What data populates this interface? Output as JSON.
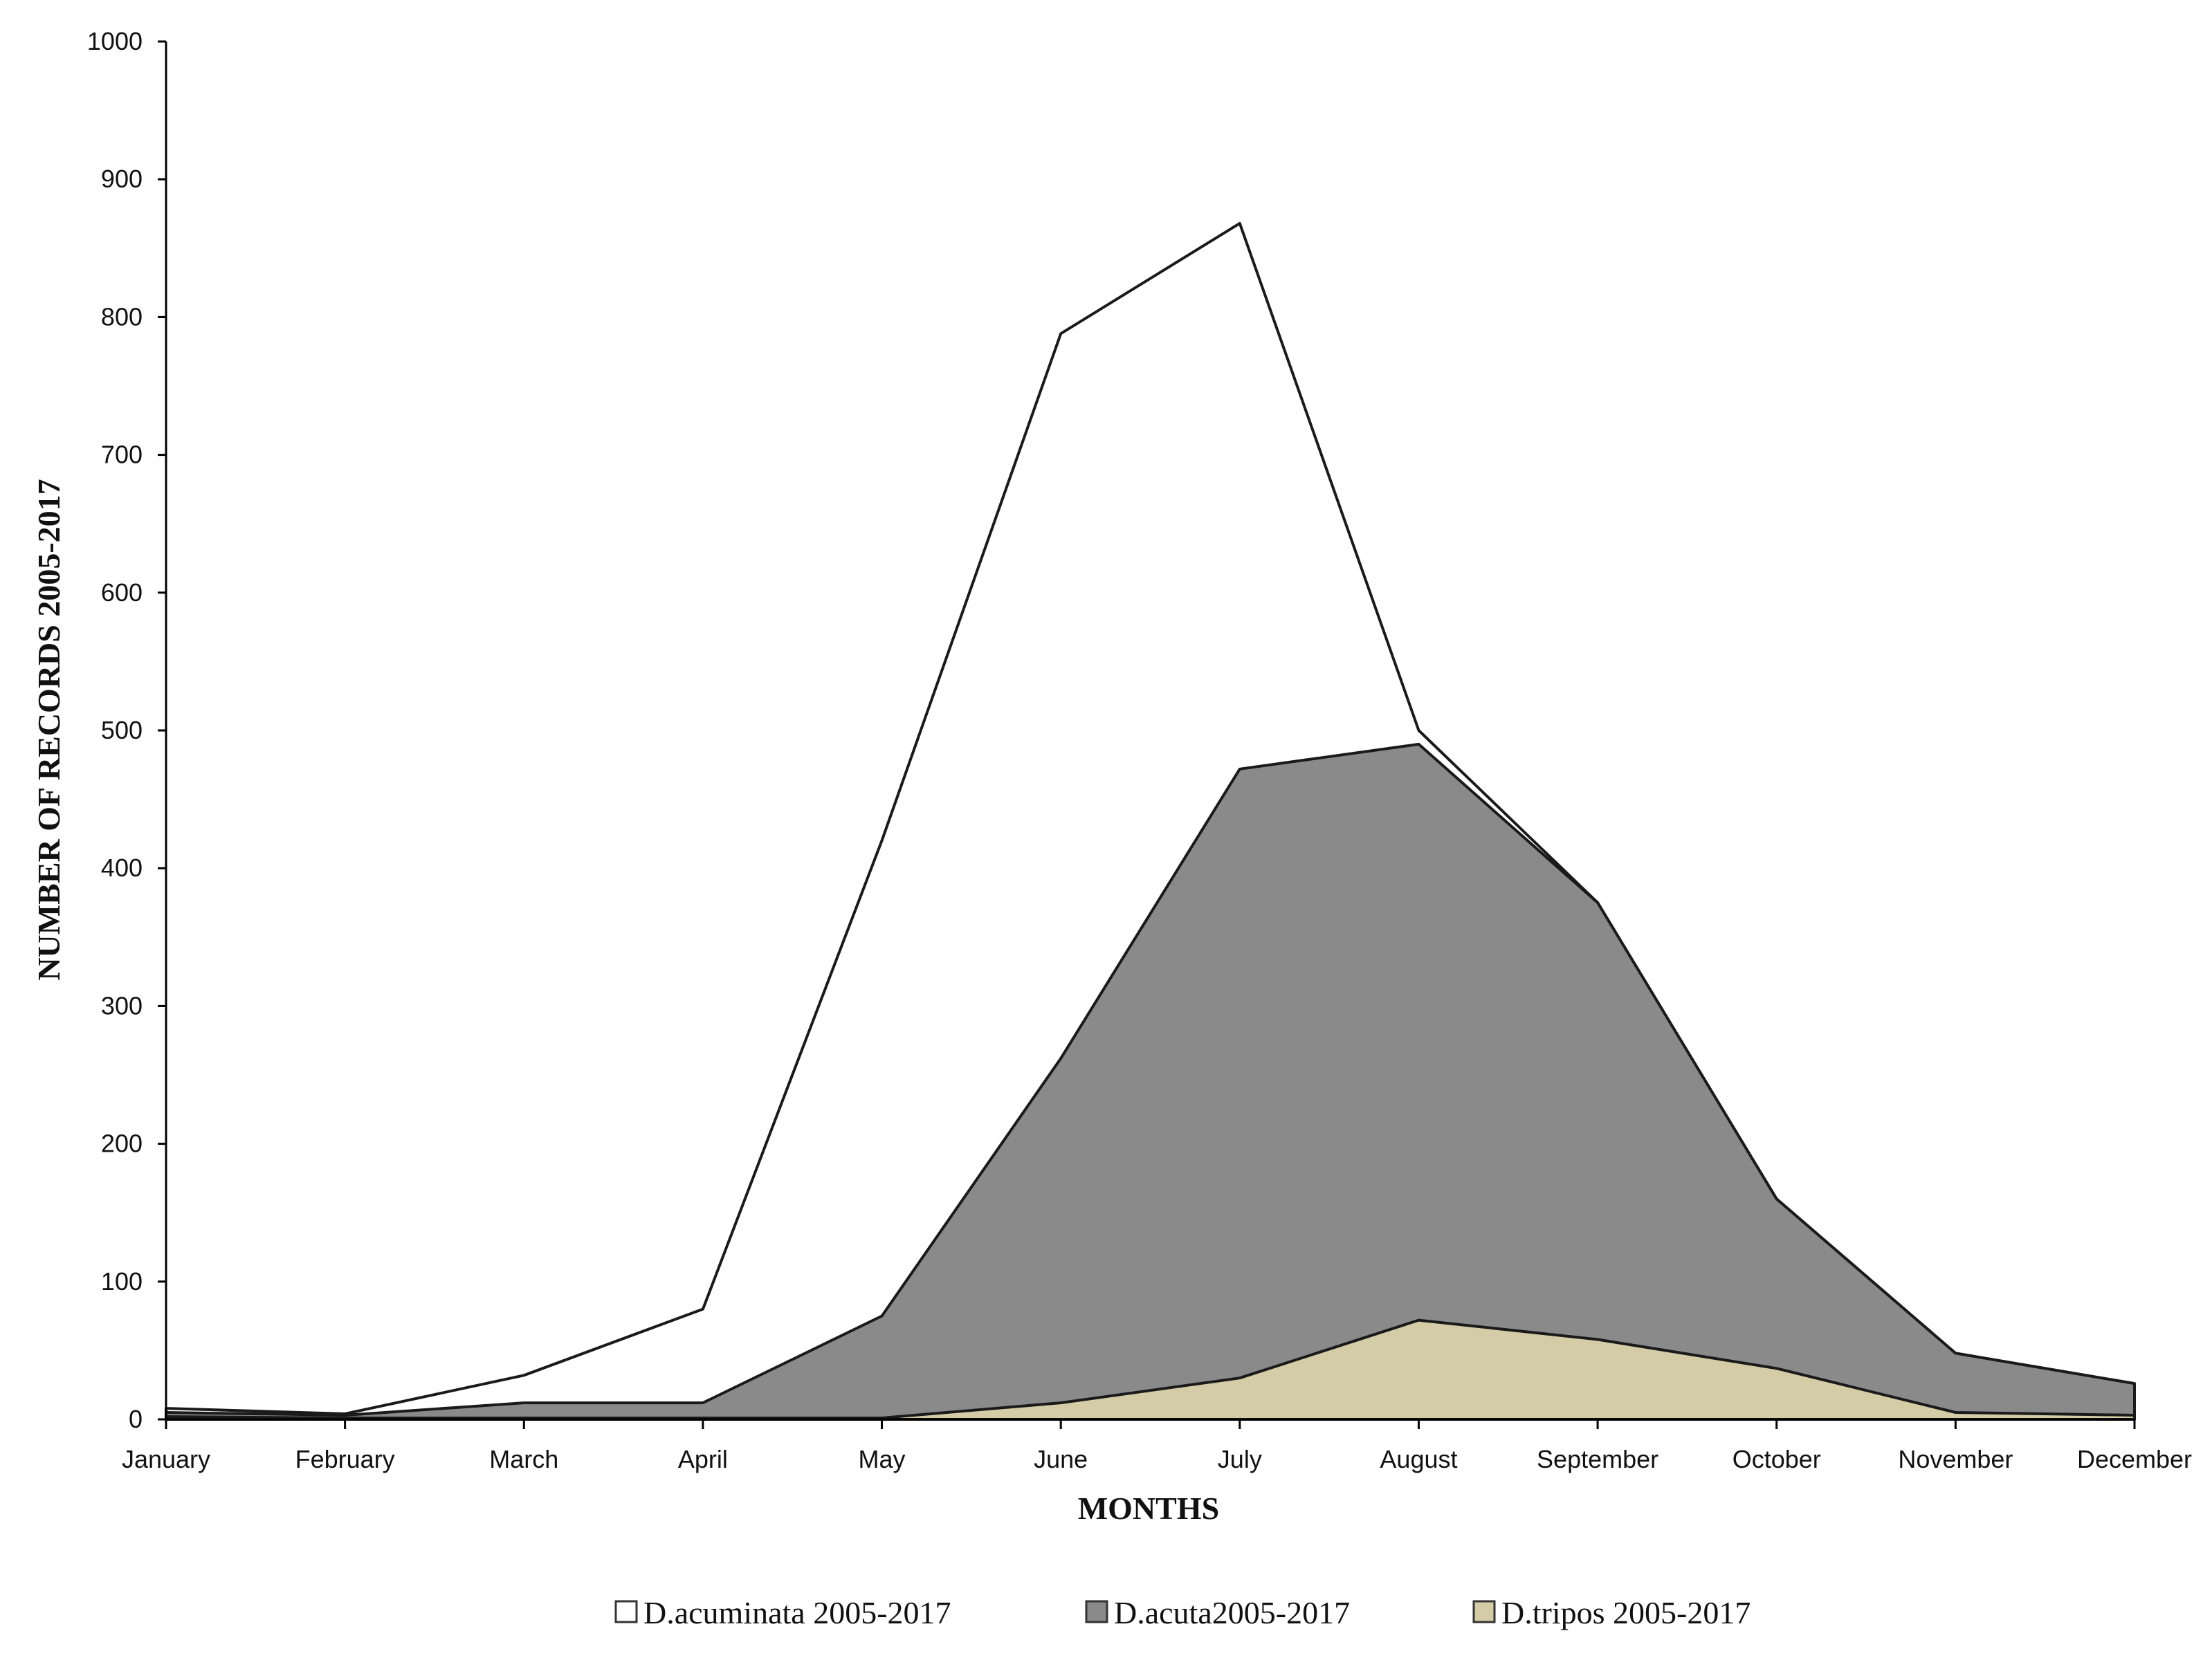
{
  "chart_data": {
    "type": "area",
    "stacked": false,
    "categories": [
      "January",
      "February",
      "March",
      "April",
      "May",
      "June",
      "July",
      "August",
      "September",
      "October",
      "November",
      "December"
    ],
    "series": [
      {
        "name": "D.acuminata 2005-2017",
        "values": [
          8,
          4,
          32,
          80,
          420,
          788,
          868,
          500,
          375,
          160,
          48,
          26
        ],
        "color": "#ffffff"
      },
      {
        "name": "D.acuta2005-2017",
        "values": [
          5,
          3,
          12,
          12,
          75,
          262,
          472,
          490,
          375,
          160,
          48,
          26
        ],
        "color": "#8a8a8a"
      },
      {
        "name": "D.tripos 2005-2017",
        "values": [
          2,
          1,
          1,
          1,
          1,
          12,
          30,
          72,
          58,
          37,
          5,
          3
        ],
        "color": "#d4cca6"
      }
    ],
    "xlabel": "MONTHS",
    "ylabel": "NUMBER OF RECORDS 2005-2017",
    "ylim": [
      0,
      1000
    ],
    "yticks": [
      0,
      100,
      200,
      300,
      400,
      500,
      600,
      700,
      800,
      900,
      1000
    ],
    "grid": false,
    "legend_position": "bottom"
  }
}
